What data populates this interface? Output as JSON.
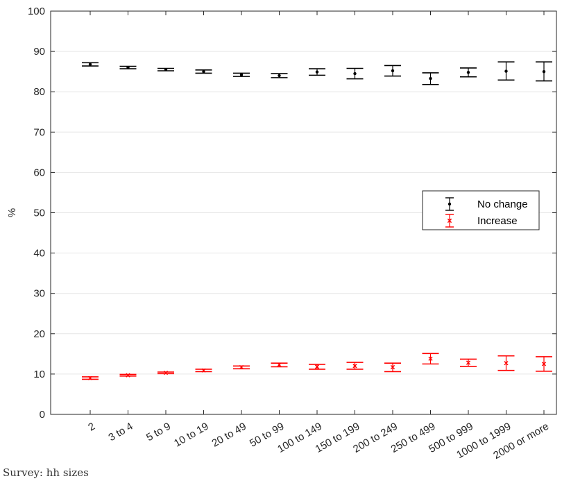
{
  "chart_data": {
    "type": "errorbar",
    "categories": [
      "2",
      "3 to 4",
      "5 to 9",
      "10 to 19",
      "20 to 49",
      "50 to 99",
      "100 to 149",
      "150 to 199",
      "200 to 249",
      "250 to 499",
      "500 to 999",
      "1000 to 1999",
      "2000 or more"
    ],
    "ylabel": "%",
    "ylim": [
      0,
      100
    ],
    "yticks": [
      0,
      10,
      20,
      30,
      40,
      50,
      60,
      70,
      80,
      90,
      100
    ],
    "grid": "horizontal",
    "legend_position": "right-middle",
    "series": [
      {
        "name": "No change",
        "color": "#000000",
        "marker": "dot",
        "values": [
          86.8,
          86.0,
          85.5,
          85.0,
          84.2,
          84.0,
          84.9,
          84.5,
          85.2,
          83.3,
          84.8,
          85.1,
          85.0
        ],
        "lower": [
          86.4,
          85.7,
          85.2,
          84.6,
          83.8,
          83.5,
          84.1,
          83.2,
          83.9,
          81.8,
          83.7,
          82.9,
          82.7
        ],
        "upper": [
          87.2,
          86.3,
          85.8,
          85.4,
          84.6,
          84.5,
          85.7,
          85.8,
          86.5,
          84.7,
          85.9,
          87.4,
          87.4
        ]
      },
      {
        "name": "Increase",
        "color": "#ff0000",
        "marker": "x",
        "values": [
          9.0,
          9.7,
          10.3,
          10.9,
          11.7,
          12.3,
          11.8,
          12.0,
          11.7,
          13.8,
          12.8,
          12.7,
          12.5
        ],
        "lower": [
          8.7,
          9.5,
          10.1,
          10.6,
          11.3,
          11.8,
          11.2,
          11.2,
          10.6,
          12.5,
          11.9,
          10.9,
          10.7
        ],
        "upper": [
          9.3,
          9.9,
          10.5,
          11.2,
          12.0,
          12.7,
          12.4,
          12.9,
          12.7,
          15.1,
          13.7,
          14.5,
          14.3
        ]
      }
    ]
  },
  "caption": "Survey: hh sizes"
}
